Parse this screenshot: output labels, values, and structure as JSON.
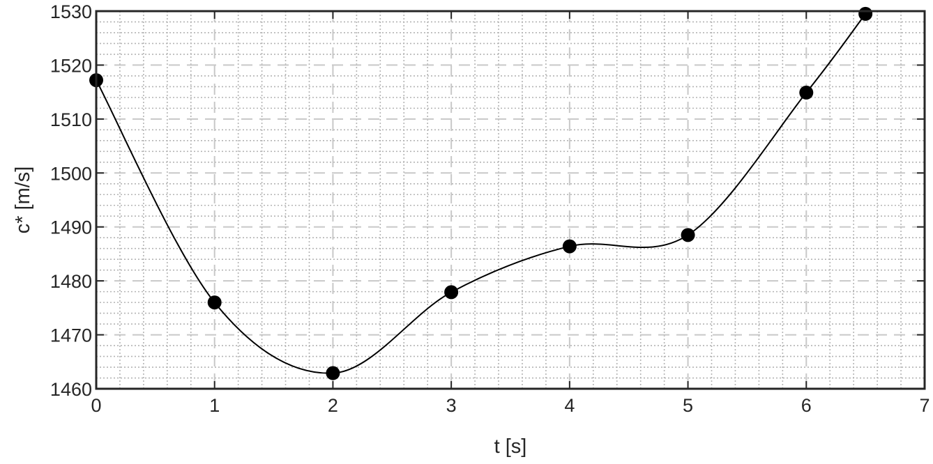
{
  "chart_data": {
    "type": "line",
    "title": "",
    "xlabel": "t [s]",
    "ylabel": "c* [m/s]",
    "xlim": [
      0,
      7
    ],
    "ylim": [
      1460,
      1530
    ],
    "x_ticks": [
      "0",
      "1",
      "2",
      "3",
      "4",
      "5",
      "6",
      "7"
    ],
    "y_ticks": [
      "1460",
      "1470",
      "1480",
      "1490",
      "1500",
      "1510",
      "1520",
      "1530"
    ],
    "grid": "major dashed, minor dotted",
    "legend": "none",
    "series": [
      {
        "marker": "filled circle",
        "line": "smooth curve",
        "color": "#000000",
        "x": [
          0,
          1,
          2,
          3,
          4,
          5,
          6,
          6.5
        ],
        "y": [
          1517.2,
          1476.0,
          1462.9,
          1477.9,
          1486.4,
          1488.5,
          1514.9,
          1529.5
        ]
      }
    ]
  }
}
